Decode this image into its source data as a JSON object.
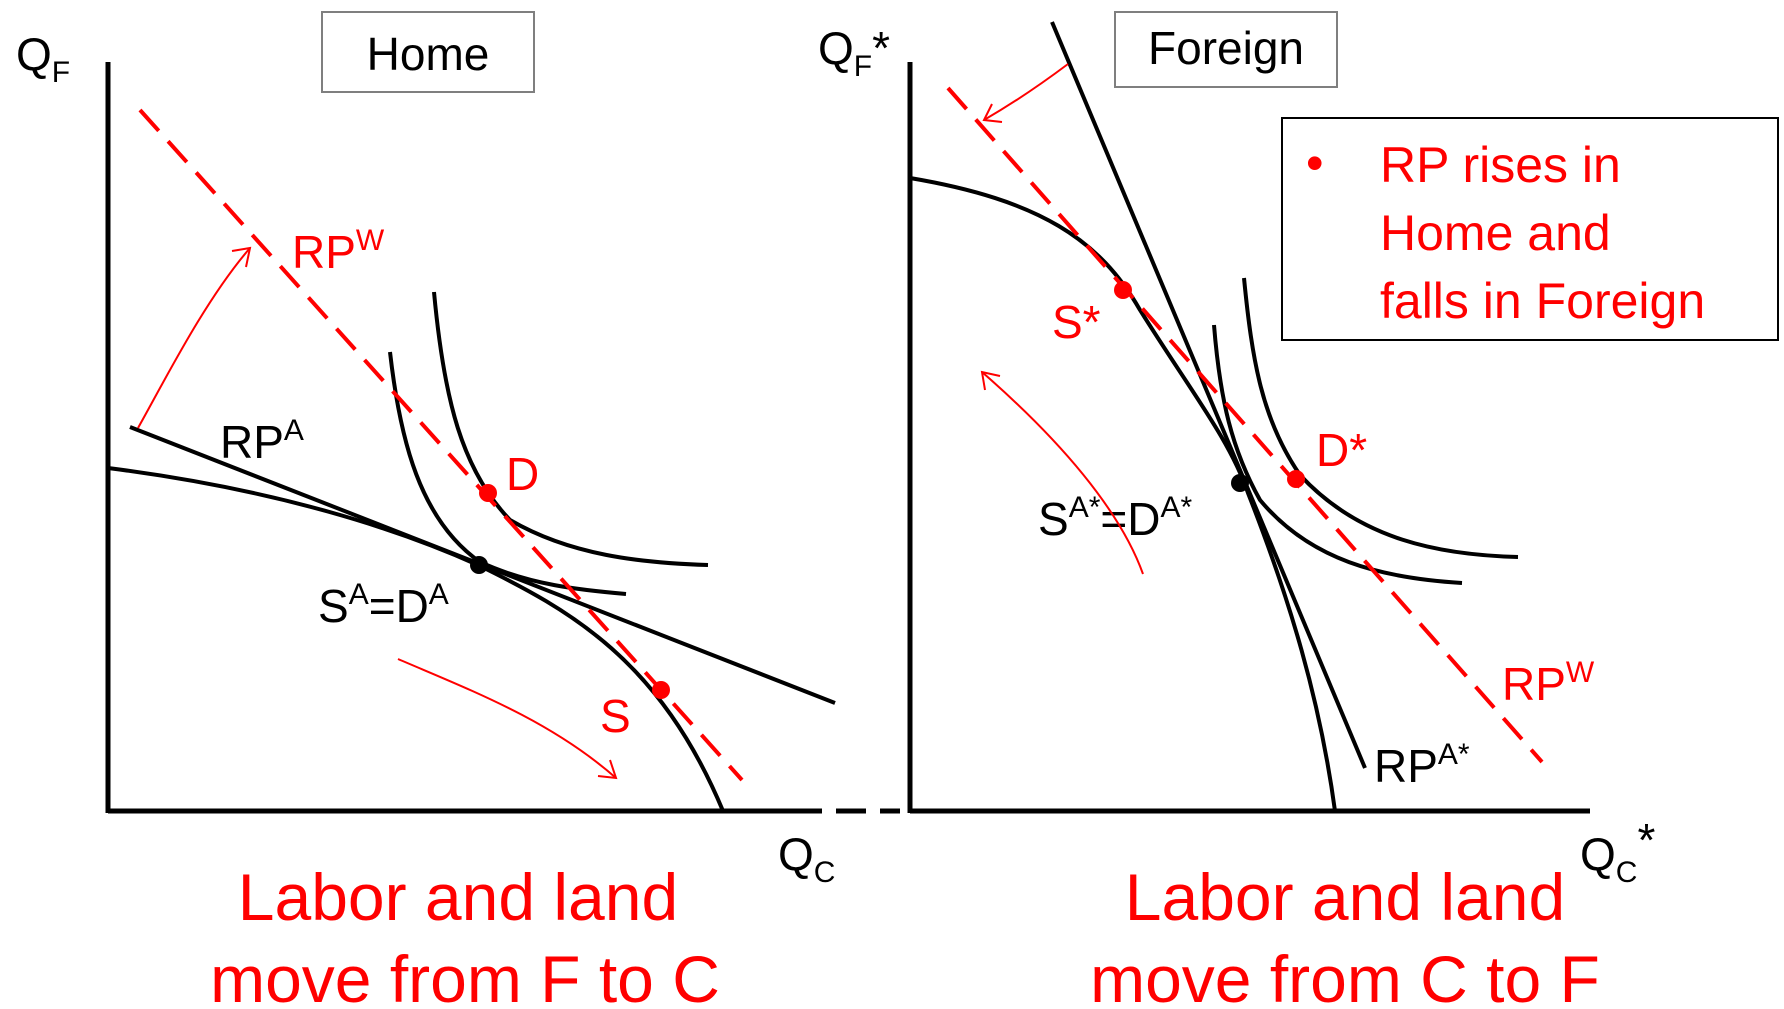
{
  "home": {
    "title": "Home",
    "axis_y_main": "Q",
    "axis_y_sub": "F",
    "axis_x_main": "Q",
    "axis_x_sub": "C",
    "rpw_main": "RP",
    "rpw_sup": "W",
    "rpa_main": "RP",
    "rpa_sup": "A",
    "point_d": "D",
    "point_s": "S",
    "eq_s": "S",
    "eq_sup1": "A",
    "eq_mid": "=D",
    "eq_sup2": "A",
    "caption_line1": "Labor and land",
    "caption_line2": "move from F to C"
  },
  "foreign": {
    "title": "Foreign",
    "axis_y_main": "Q",
    "axis_y_sub": "F",
    "axis_y_star": "*",
    "axis_x_main": "Q",
    "axis_x_sub": "C",
    "axis_x_star": "*",
    "rpw_main": "RP",
    "rpw_sup": "W",
    "rpa_main": "RP",
    "rpa_sup": "A*",
    "point_d": "D*",
    "point_s": "S*",
    "eq_s": "S",
    "eq_sup1": "A*",
    "eq_mid": "=D",
    "eq_sup2": "A*",
    "caption_line1": "Labor and land",
    "caption_line2": "move from C to F"
  },
  "legend": {
    "bullet": "•",
    "line1": "RP rises in",
    "line2": "Home and",
    "line3": "falls in Foreign"
  },
  "colors": {
    "accent": "#ff0000",
    "ink": "#000000",
    "box_border": "#7f7f7f"
  }
}
